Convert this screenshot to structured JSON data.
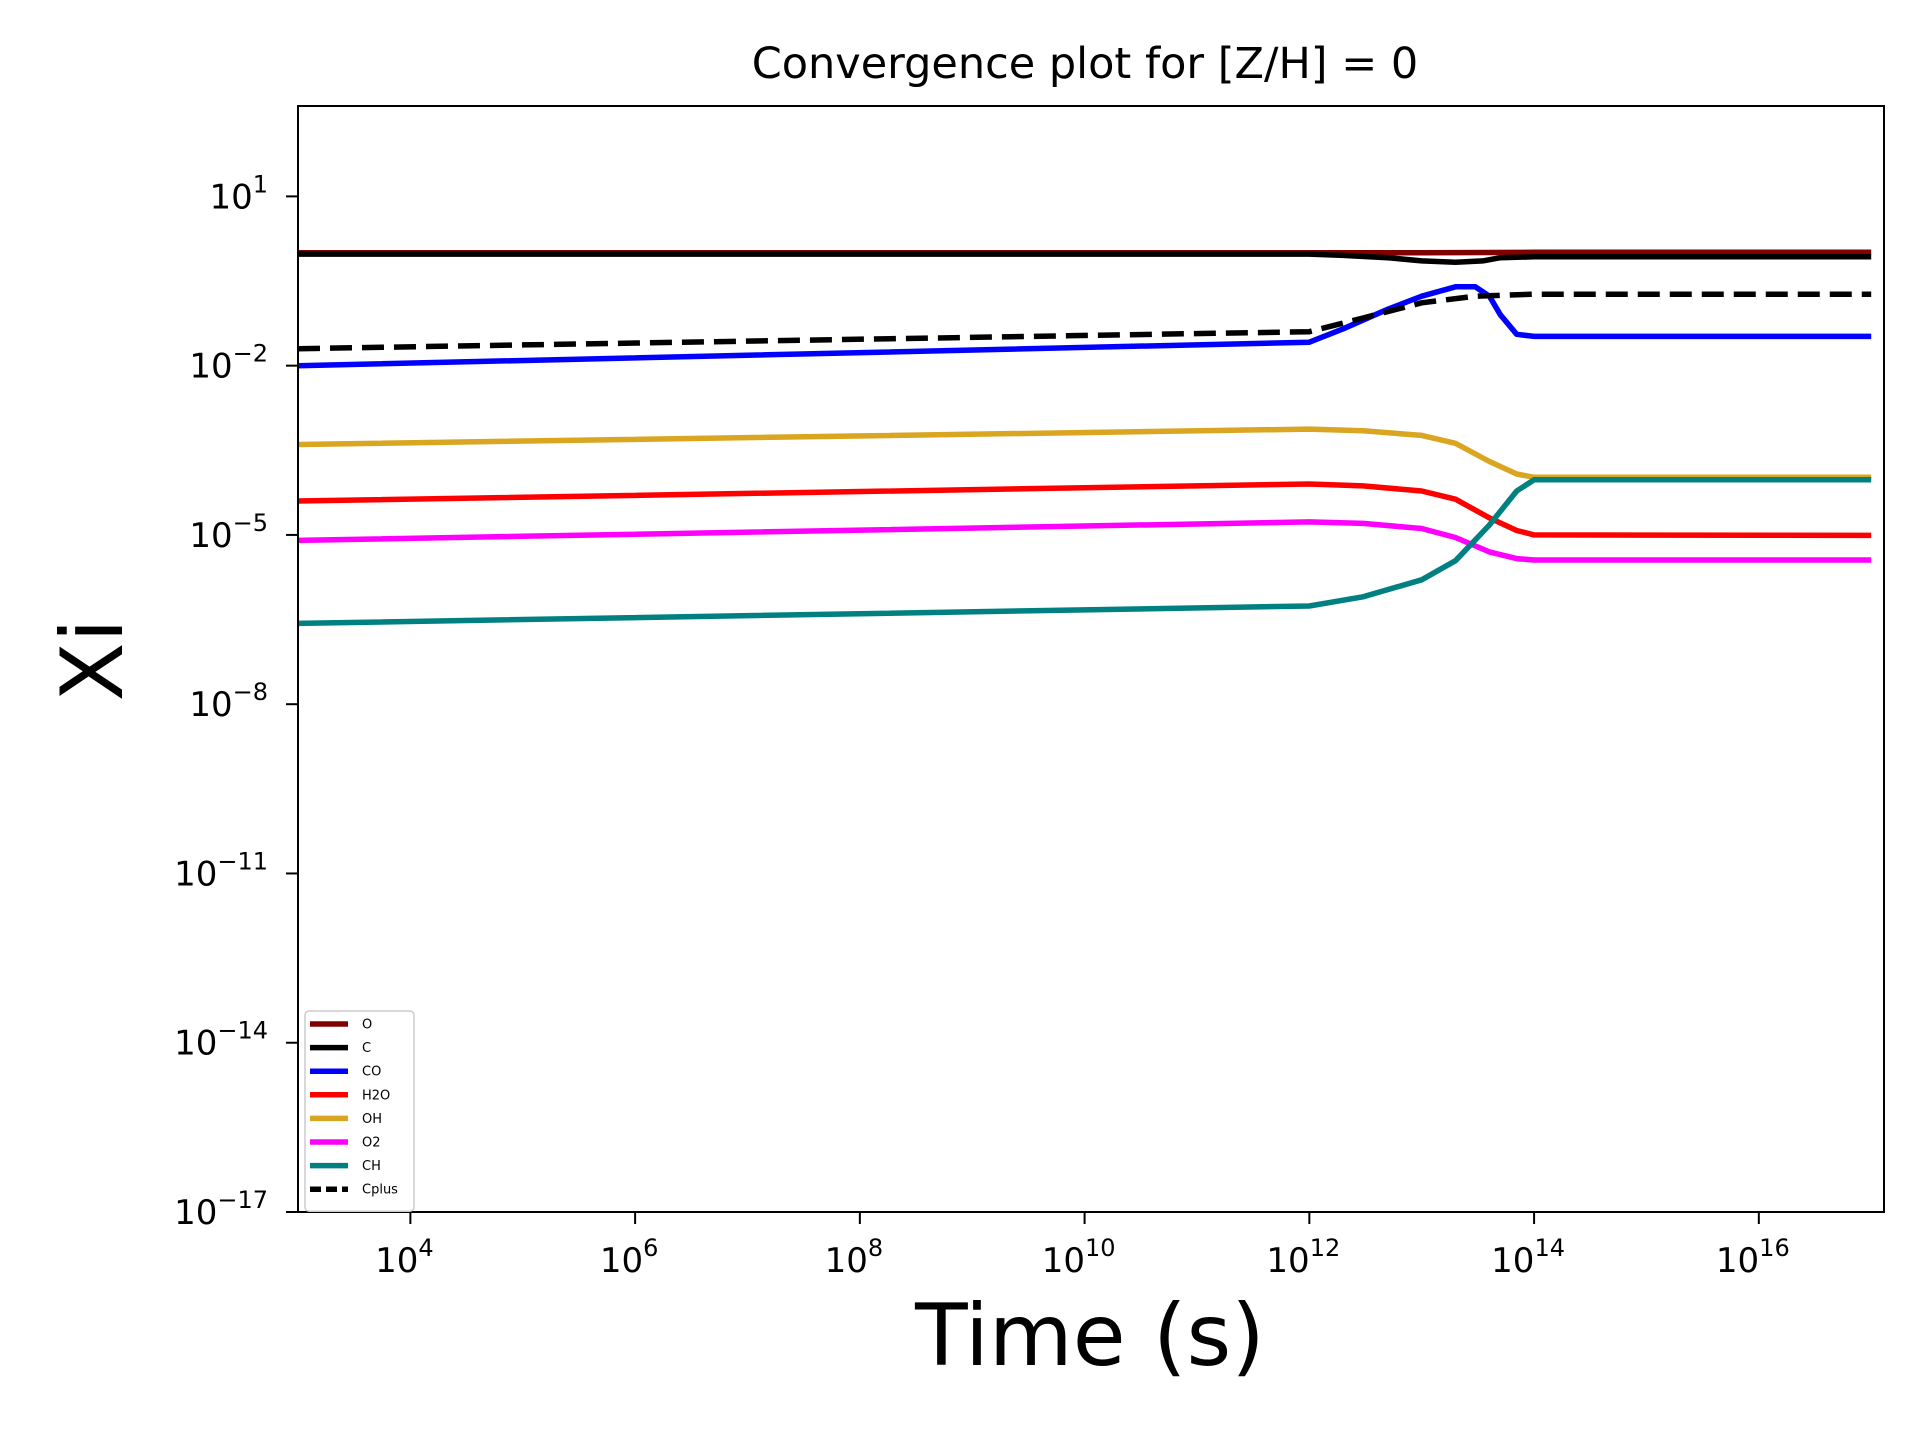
{
  "chart_data": {
    "type": "line",
    "title": "Convergence plot for [Z/H] = 0",
    "xlabel": "Time (s)",
    "ylabel": "Xi",
    "x_scale": "log",
    "y_scale": "log",
    "xlim": [
      1000,
      1.3e+17
    ],
    "ylim": [
      1e-17,
      400
    ],
    "x_ticks": [
      {
        "value": 10000.0,
        "base": "10",
        "exp": "4"
      },
      {
        "value": 1000000.0,
        "base": "10",
        "exp": "6"
      },
      {
        "value": 100000000.0,
        "base": "10",
        "exp": "8"
      },
      {
        "value": 10000000000.0,
        "base": "10",
        "exp": "10"
      },
      {
        "value": 1000000000000.0,
        "base": "10",
        "exp": "12"
      },
      {
        "value": 100000000000000.0,
        "base": "10",
        "exp": "14"
      },
      {
        "value": 1e+16,
        "base": "10",
        "exp": "16"
      }
    ],
    "y_ticks": [
      {
        "value": 10,
        "base": "10",
        "exp": "1"
      },
      {
        "value": 0.01,
        "base": "10",
        "exp": "−2"
      },
      {
        "value": 1e-05,
        "base": "10",
        "exp": "−5"
      },
      {
        "value": 1e-08,
        "base": "10",
        "exp": "−8"
      },
      {
        "value": 1e-11,
        "base": "10",
        "exp": "−11"
      },
      {
        "value": 1e-14,
        "base": "10",
        "exp": "−14"
      },
      {
        "value": 1e-17,
        "base": "10",
        "exp": "−17"
      }
    ],
    "grid": false,
    "legend_position": "lower-left",
    "series": [
      {
        "name": "O",
        "color": "#800000",
        "dash": "solid",
        "points": [
          [
            1000,
            1.0
          ],
          [
            1000000000000.0,
            1.0
          ],
          [
            10000000000000.0,
            1.0
          ],
          [
            100000000000000.0,
            1.02
          ],
          [
            1e+17,
            1.02
          ]
        ]
      },
      {
        "name": "C",
        "color": "#000000",
        "dash": "solid",
        "points": [
          [
            1000,
            0.95
          ],
          [
            1000000000000.0,
            0.95
          ],
          [
            2000000000000.0,
            0.9
          ],
          [
            5000000000000.0,
            0.82
          ],
          [
            10000000000000.0,
            0.72
          ],
          [
            20000000000000.0,
            0.68
          ],
          [
            35000000000000.0,
            0.72
          ],
          [
            50000000000000.0,
            0.82
          ],
          [
            100000000000000.0,
            0.85
          ],
          [
            1e+17,
            0.85
          ]
        ]
      },
      {
        "name": "CO",
        "color": "#0000ff",
        "dash": "solid",
        "points": [
          [
            1000,
            0.01
          ],
          [
            1000000000000.0,
            0.026
          ],
          [
            2000000000000.0,
            0.045
          ],
          [
            5000000000000.0,
            0.1
          ],
          [
            10000000000000.0,
            0.17
          ],
          [
            20000000000000.0,
            0.25
          ],
          [
            30000000000000.0,
            0.25
          ],
          [
            40000000000000.0,
            0.17
          ],
          [
            50000000000000.0,
            0.08
          ],
          [
            70000000000000.0,
            0.036
          ],
          [
            100000000000000.0,
            0.033
          ],
          [
            1e+17,
            0.033
          ]
        ]
      },
      {
        "name": "H2O",
        "color": "#ff0000",
        "dash": "solid",
        "points": [
          [
            1000,
            4e-05
          ],
          [
            1000000000000.0,
            8e-05
          ],
          [
            3000000000000.0,
            7.4e-05
          ],
          [
            10000000000000.0,
            6e-05
          ],
          [
            20000000000000.0,
            4.3e-05
          ],
          [
            40000000000000.0,
            2e-05
          ],
          [
            70000000000000.0,
            1.2e-05
          ],
          [
            100000000000000.0,
            1e-05
          ],
          [
            1e+17,
            9.8e-06
          ]
        ]
      },
      {
        "name": "OH",
        "color": "#daa520",
        "dash": "solid",
        "points": [
          [
            1000,
            0.0004
          ],
          [
            1000000000000.0,
            0.00075
          ],
          [
            3000000000000.0,
            0.0007
          ],
          [
            10000000000000.0,
            0.00058
          ],
          [
            20000000000000.0,
            0.00042
          ],
          [
            40000000000000.0,
            0.0002
          ],
          [
            70000000000000.0,
            0.00012
          ],
          [
            100000000000000.0,
            0.000105
          ],
          [
            1e+17,
            0.000105
          ]
        ]
      },
      {
        "name": "O2",
        "color": "#ff00ff",
        "dash": "solid",
        "points": [
          [
            1000,
            8e-06
          ],
          [
            1000000000000.0,
            1.7e-05
          ],
          [
            3000000000000.0,
            1.6e-05
          ],
          [
            10000000000000.0,
            1.3e-05
          ],
          [
            20000000000000.0,
            9e-06
          ],
          [
            40000000000000.0,
            5e-06
          ],
          [
            70000000000000.0,
            3.8e-06
          ],
          [
            100000000000000.0,
            3.6e-06
          ],
          [
            1e+17,
            3.6e-06
          ]
        ]
      },
      {
        "name": "CH",
        "color": "#008080",
        "dash": "solid",
        "points": [
          [
            1000,
            2.7e-07
          ],
          [
            1000000000000.0,
            5.5e-07
          ],
          [
            3000000000000.0,
            8e-07
          ],
          [
            10000000000000.0,
            1.6e-06
          ],
          [
            20000000000000.0,
            3.5e-06
          ],
          [
            40000000000000.0,
            1.5e-05
          ],
          [
            70000000000000.0,
            6e-05
          ],
          [
            100000000000000.0,
            9.5e-05
          ],
          [
            1e+17,
            9.5e-05
          ]
        ]
      },
      {
        "name": "Cplus",
        "color": "#000000",
        "dash": "dashed",
        "points": [
          [
            1000,
            0.02
          ],
          [
            1000000000000.0,
            0.04
          ],
          [
            3000000000000.0,
            0.07
          ],
          [
            10000000000000.0,
            0.13
          ],
          [
            30000000000000.0,
            0.17
          ],
          [
            100000000000000.0,
            0.185
          ],
          [
            1e+17,
            0.185
          ]
        ]
      }
    ]
  }
}
